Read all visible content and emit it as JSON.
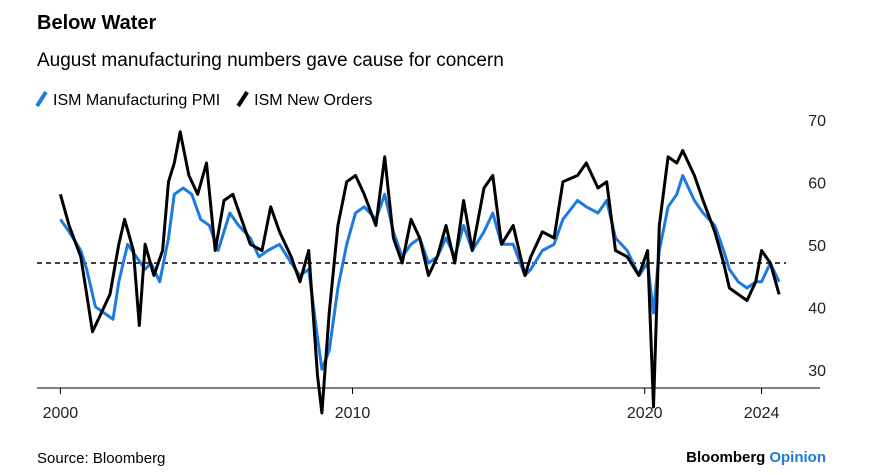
{
  "chart_data": {
    "type": "line",
    "title": "Below Water",
    "subtitle": "August manufacturing numbers gave cause for concern",
    "source": "Source: Bloomberg",
    "brand": "Bloomberg",
    "brand_suffix": "Opinion",
    "xlim": [
      1999.2,
      2026
    ],
    "xticks": [
      2000,
      2010,
      2020,
      2024
    ],
    "ylim": [
      30,
      72
    ],
    "yticks": [
      30,
      40,
      50,
      60,
      70
    ],
    "reference_line": 50,
    "series": [
      {
        "name": "ISM Manufacturing PMI",
        "color": "#1f7ae0",
        "x": [
          2000.0,
          2000.3,
          2000.7,
          2000.9,
          2001.2,
          2001.5,
          2001.8,
          2002.0,
          2002.3,
          2002.6,
          2002.9,
          2003.1,
          2003.4,
          2003.7,
          2003.9,
          2004.2,
          2004.5,
          2004.8,
          2005.1,
          2005.4,
          2005.8,
          2006.1,
          2006.5,
          2006.8,
          2007.1,
          2007.5,
          2007.9,
          2008.2,
          2008.5,
          2008.8,
          2008.95,
          2009.2,
          2009.5,
          2009.8,
          2010.1,
          2010.4,
          2010.8,
          2011.1,
          2011.4,
          2011.7,
          2012.0,
          2012.3,
          2012.6,
          2012.9,
          2013.2,
          2013.5,
          2013.8,
          2014.1,
          2014.5,
          2014.8,
          2015.1,
          2015.5,
          2015.9,
          2016.1,
          2016.5,
          2016.9,
          2017.2,
          2017.7,
          2018.0,
          2018.4,
          2018.7,
          2019.0,
          2019.4,
          2019.8,
          2020.1,
          2020.3,
          2020.5,
          2020.8,
          2021.1,
          2021.3,
          2021.7,
          2022.0,
          2022.4,
          2022.7,
          2022.9,
          2023.2,
          2023.5,
          2023.8,
          2024.0,
          2024.3,
          2024.6
        ],
        "values": [
          57,
          55,
          52,
          49,
          43,
          42,
          41,
          47,
          53,
          51,
          49,
          50,
          47,
          54,
          61,
          62,
          61,
          57,
          56,
          52,
          58,
          56,
          54,
          51,
          52,
          53,
          50,
          48,
          49,
          38,
          33,
          36,
          46,
          53,
          58,
          59,
          57,
          61,
          55,
          51,
          53,
          54,
          50,
          51,
          54,
          51,
          56,
          52,
          55,
          58,
          53,
          53,
          48,
          49,
          52,
          53,
          57,
          60,
          59,
          58,
          60,
          54,
          52,
          48,
          50,
          42,
          52,
          59,
          61,
          64,
          60,
          58,
          56,
          52,
          49,
          47,
          46,
          47,
          47,
          50,
          47
        ]
      },
      {
        "name": "ISM New Orders",
        "color": "#000000",
        "x": [
          2000.0,
          2000.3,
          2000.7,
          2000.9,
          2001.1,
          2001.4,
          2001.7,
          2002.0,
          2002.2,
          2002.5,
          2002.7,
          2002.9,
          2003.2,
          2003.5,
          2003.7,
          2003.9,
          2004.1,
          2004.4,
          2004.7,
          2005.0,
          2005.3,
          2005.6,
          2005.9,
          2006.2,
          2006.5,
          2006.9,
          2007.2,
          2007.5,
          2007.9,
          2008.2,
          2008.5,
          2008.8,
          2008.95,
          2009.2,
          2009.5,
          2009.8,
          2010.1,
          2010.4,
          2010.8,
          2011.1,
          2011.4,
          2011.7,
          2012.0,
          2012.3,
          2012.6,
          2012.9,
          2013.2,
          2013.5,
          2013.8,
          2014.1,
          2014.5,
          2014.8,
          2015.1,
          2015.5,
          2015.9,
          2016.1,
          2016.5,
          2016.9,
          2017.2,
          2017.7,
          2018.0,
          2018.4,
          2018.7,
          2019.0,
          2019.4,
          2019.8,
          2020.1,
          2020.3,
          2020.5,
          2020.8,
          2021.1,
          2021.3,
          2021.7,
          2022.0,
          2022.4,
          2022.7,
          2022.9,
          2023.2,
          2023.5,
          2023.8,
          2024.0,
          2024.3,
          2024.6
        ],
        "values": [
          61,
          56,
          51,
          45,
          39,
          42,
          45,
          53,
          57,
          52,
          40,
          53,
          48,
          52,
          63,
          66,
          71,
          64,
          61,
          66,
          52,
          60,
          61,
          57,
          53,
          52,
          59,
          55,
          51,
          47,
          52,
          32,
          26,
          42,
          56,
          63,
          64,
          61,
          56,
          67,
          54,
          50,
          57,
          54,
          48,
          51,
          56,
          50,
          60,
          52,
          62,
          64,
          53,
          56,
          48,
          51,
          55,
          54,
          63,
          64,
          66,
          62,
          63,
          52,
          51,
          48,
          52,
          27,
          56,
          67,
          66,
          68,
          64,
          60,
          55,
          50,
          46,
          45,
          44,
          47,
          52,
          50,
          45
        ]
      }
    ]
  }
}
